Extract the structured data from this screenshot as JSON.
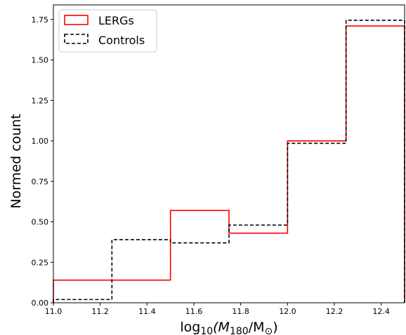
{
  "chart_data": {
    "type": "histogram-step",
    "bin_edges": [
      11.0,
      11.25,
      11.5,
      11.75,
      12.0,
      12.25,
      12.5
    ],
    "series": [
      {
        "name": "LERGs",
        "values": [
          0.14,
          0.14,
          0.57,
          0.43,
          1.0,
          1.71
        ],
        "color": "#ff0000",
        "linestyle": "solid"
      },
      {
        "name": "Controls",
        "values": [
          0.02,
          0.39,
          0.37,
          0.48,
          0.985,
          1.745
        ],
        "color": "#000000",
        "linestyle": "dashed"
      }
    ],
    "xlim": [
      11.0,
      12.5
    ],
    "ylim": [
      0.0,
      1.84
    ],
    "xticks": [
      "11.0",
      "11.2",
      "11.4",
      "11.6",
      "11.8",
      "12.0",
      "12.2",
      "12.4"
    ],
    "yticks": [
      "0.00",
      "0.25",
      "0.50",
      "0.75",
      "1.00",
      "1.25",
      "1.50",
      "1.75"
    ],
    "xlabel": {
      "pre": "log",
      "sub1": "10",
      "mid": "(M",
      "sub2": "180",
      "post": "/M",
      "sun": "⊙",
      "close": ")"
    },
    "ylabel": "Normed count",
    "legend_location": "upper-left",
    "grid": false
  }
}
